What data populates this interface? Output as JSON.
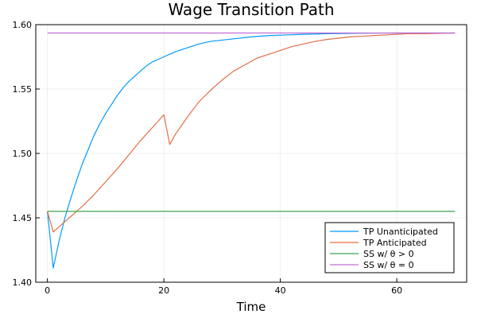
{
  "chart_data": {
    "type": "line",
    "title": "Wage Transition Path",
    "xlabel": "Time",
    "ylabel": "",
    "xlim": [
      -2,
      72
    ],
    "ylim": [
      1.4,
      1.6
    ],
    "xticks": [
      0,
      20,
      40,
      60
    ],
    "xtick_labels": [
      "0",
      "20",
      "40",
      "60"
    ],
    "yticks": [
      1.4,
      1.45,
      1.5,
      1.55,
      1.6
    ],
    "ytick_labels": [
      "1.40",
      "1.45",
      "1.50",
      "1.55",
      "1.60"
    ],
    "grid": true,
    "legend_position": "bottom-right",
    "series": [
      {
        "name": "TP Unanticipated",
        "color": "#009AFA",
        "x": [
          0,
          1,
          2,
          3,
          4,
          5,
          6,
          7,
          8,
          9,
          10,
          11,
          12,
          13,
          14,
          15,
          16,
          17,
          18,
          19,
          20,
          22,
          24,
          26,
          28,
          30,
          32,
          35,
          38,
          41,
          44,
          48,
          52,
          56,
          60,
          65,
          70
        ],
        "y": [
          1.455,
          1.411,
          1.432,
          1.45,
          1.465,
          1.479,
          1.492,
          1.503,
          1.514,
          1.523,
          1.531,
          1.538,
          1.545,
          1.551,
          1.556,
          1.56,
          1.564,
          1.568,
          1.571,
          1.573,
          1.575,
          1.579,
          1.582,
          1.585,
          1.587,
          1.588,
          1.589,
          1.5905,
          1.5915,
          1.592,
          1.5925,
          1.593,
          1.5932,
          1.5934,
          1.5935,
          1.5935,
          1.5935
        ]
      },
      {
        "name": "TP Anticipated",
        "color": "#E36F47",
        "x": [
          0,
          1,
          2,
          3,
          4,
          5,
          6,
          8,
          10,
          12,
          14,
          16,
          18,
          20,
          21,
          22,
          24,
          26,
          28,
          30,
          32,
          34,
          36,
          38,
          40,
          42,
          44,
          46,
          48,
          50,
          52,
          54,
          56,
          58,
          60,
          62,
          65,
          70
        ],
        "y": [
          1.455,
          1.439,
          1.443,
          1.447,
          1.451,
          1.455,
          1.459,
          1.468,
          1.478,
          1.488,
          1.499,
          1.51,
          1.52,
          1.53,
          1.507,
          1.515,
          1.528,
          1.54,
          1.549,
          1.557,
          1.564,
          1.569,
          1.574,
          1.577,
          1.58,
          1.583,
          1.585,
          1.587,
          1.5885,
          1.5895,
          1.5905,
          1.591,
          1.5915,
          1.592,
          1.5925,
          1.593,
          1.593,
          1.5935
        ]
      },
      {
        "name": "SS w/ θ > 0",
        "color": "#3DA44D",
        "x": [
          0,
          70
        ],
        "y": [
          1.455,
          1.455
        ]
      },
      {
        "name": "SS w/ θ = 0",
        "color": "#C271D2",
        "x": [
          0,
          70
        ],
        "y": [
          1.5935,
          1.5935
        ]
      }
    ]
  }
}
